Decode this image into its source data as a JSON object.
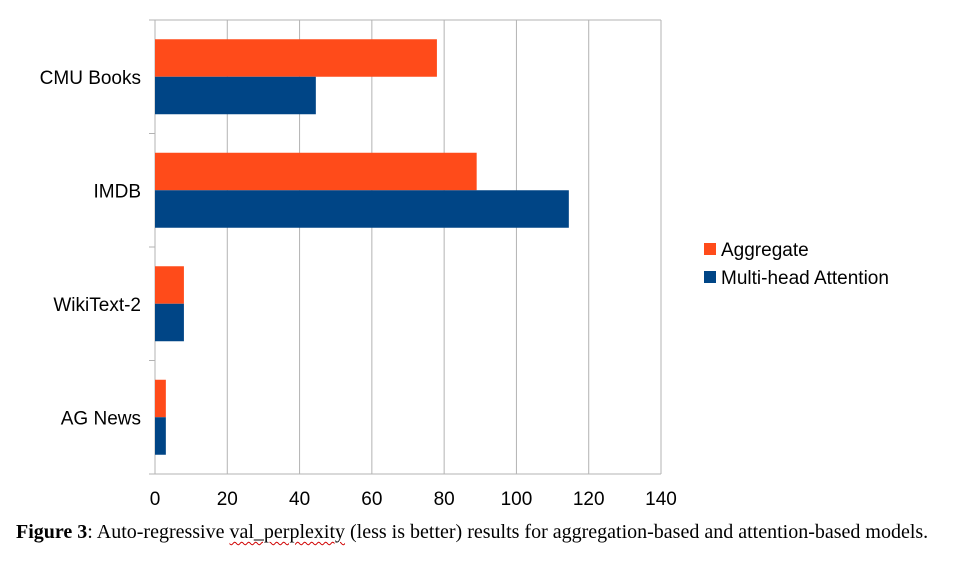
{
  "chart_data": {
    "type": "bar",
    "orientation": "horizontal",
    "categories": [
      "CMU Books",
      "IMDB",
      "WikiText-2",
      "AG News"
    ],
    "series": [
      {
        "name": "Aggregate",
        "color": "#ff4b1a",
        "values": [
          78,
          89,
          8,
          3
        ]
      },
      {
        "name": "Multi-head Attention",
        "color": "#004586",
        "values": [
          44.5,
          114.5,
          8,
          3
        ]
      }
    ],
    "xlim": [
      0,
      140
    ],
    "xticks": [
      0,
      20,
      40,
      60,
      80,
      100,
      120,
      140
    ],
    "grid": true,
    "legend_position": "right"
  },
  "caption": {
    "figure_label": "Figure 3",
    "text_before": ": Auto-regressive ",
    "flagged_word": "val_perplexity",
    "text_after": " (less is better) results for aggregation-based and attention-based models."
  }
}
